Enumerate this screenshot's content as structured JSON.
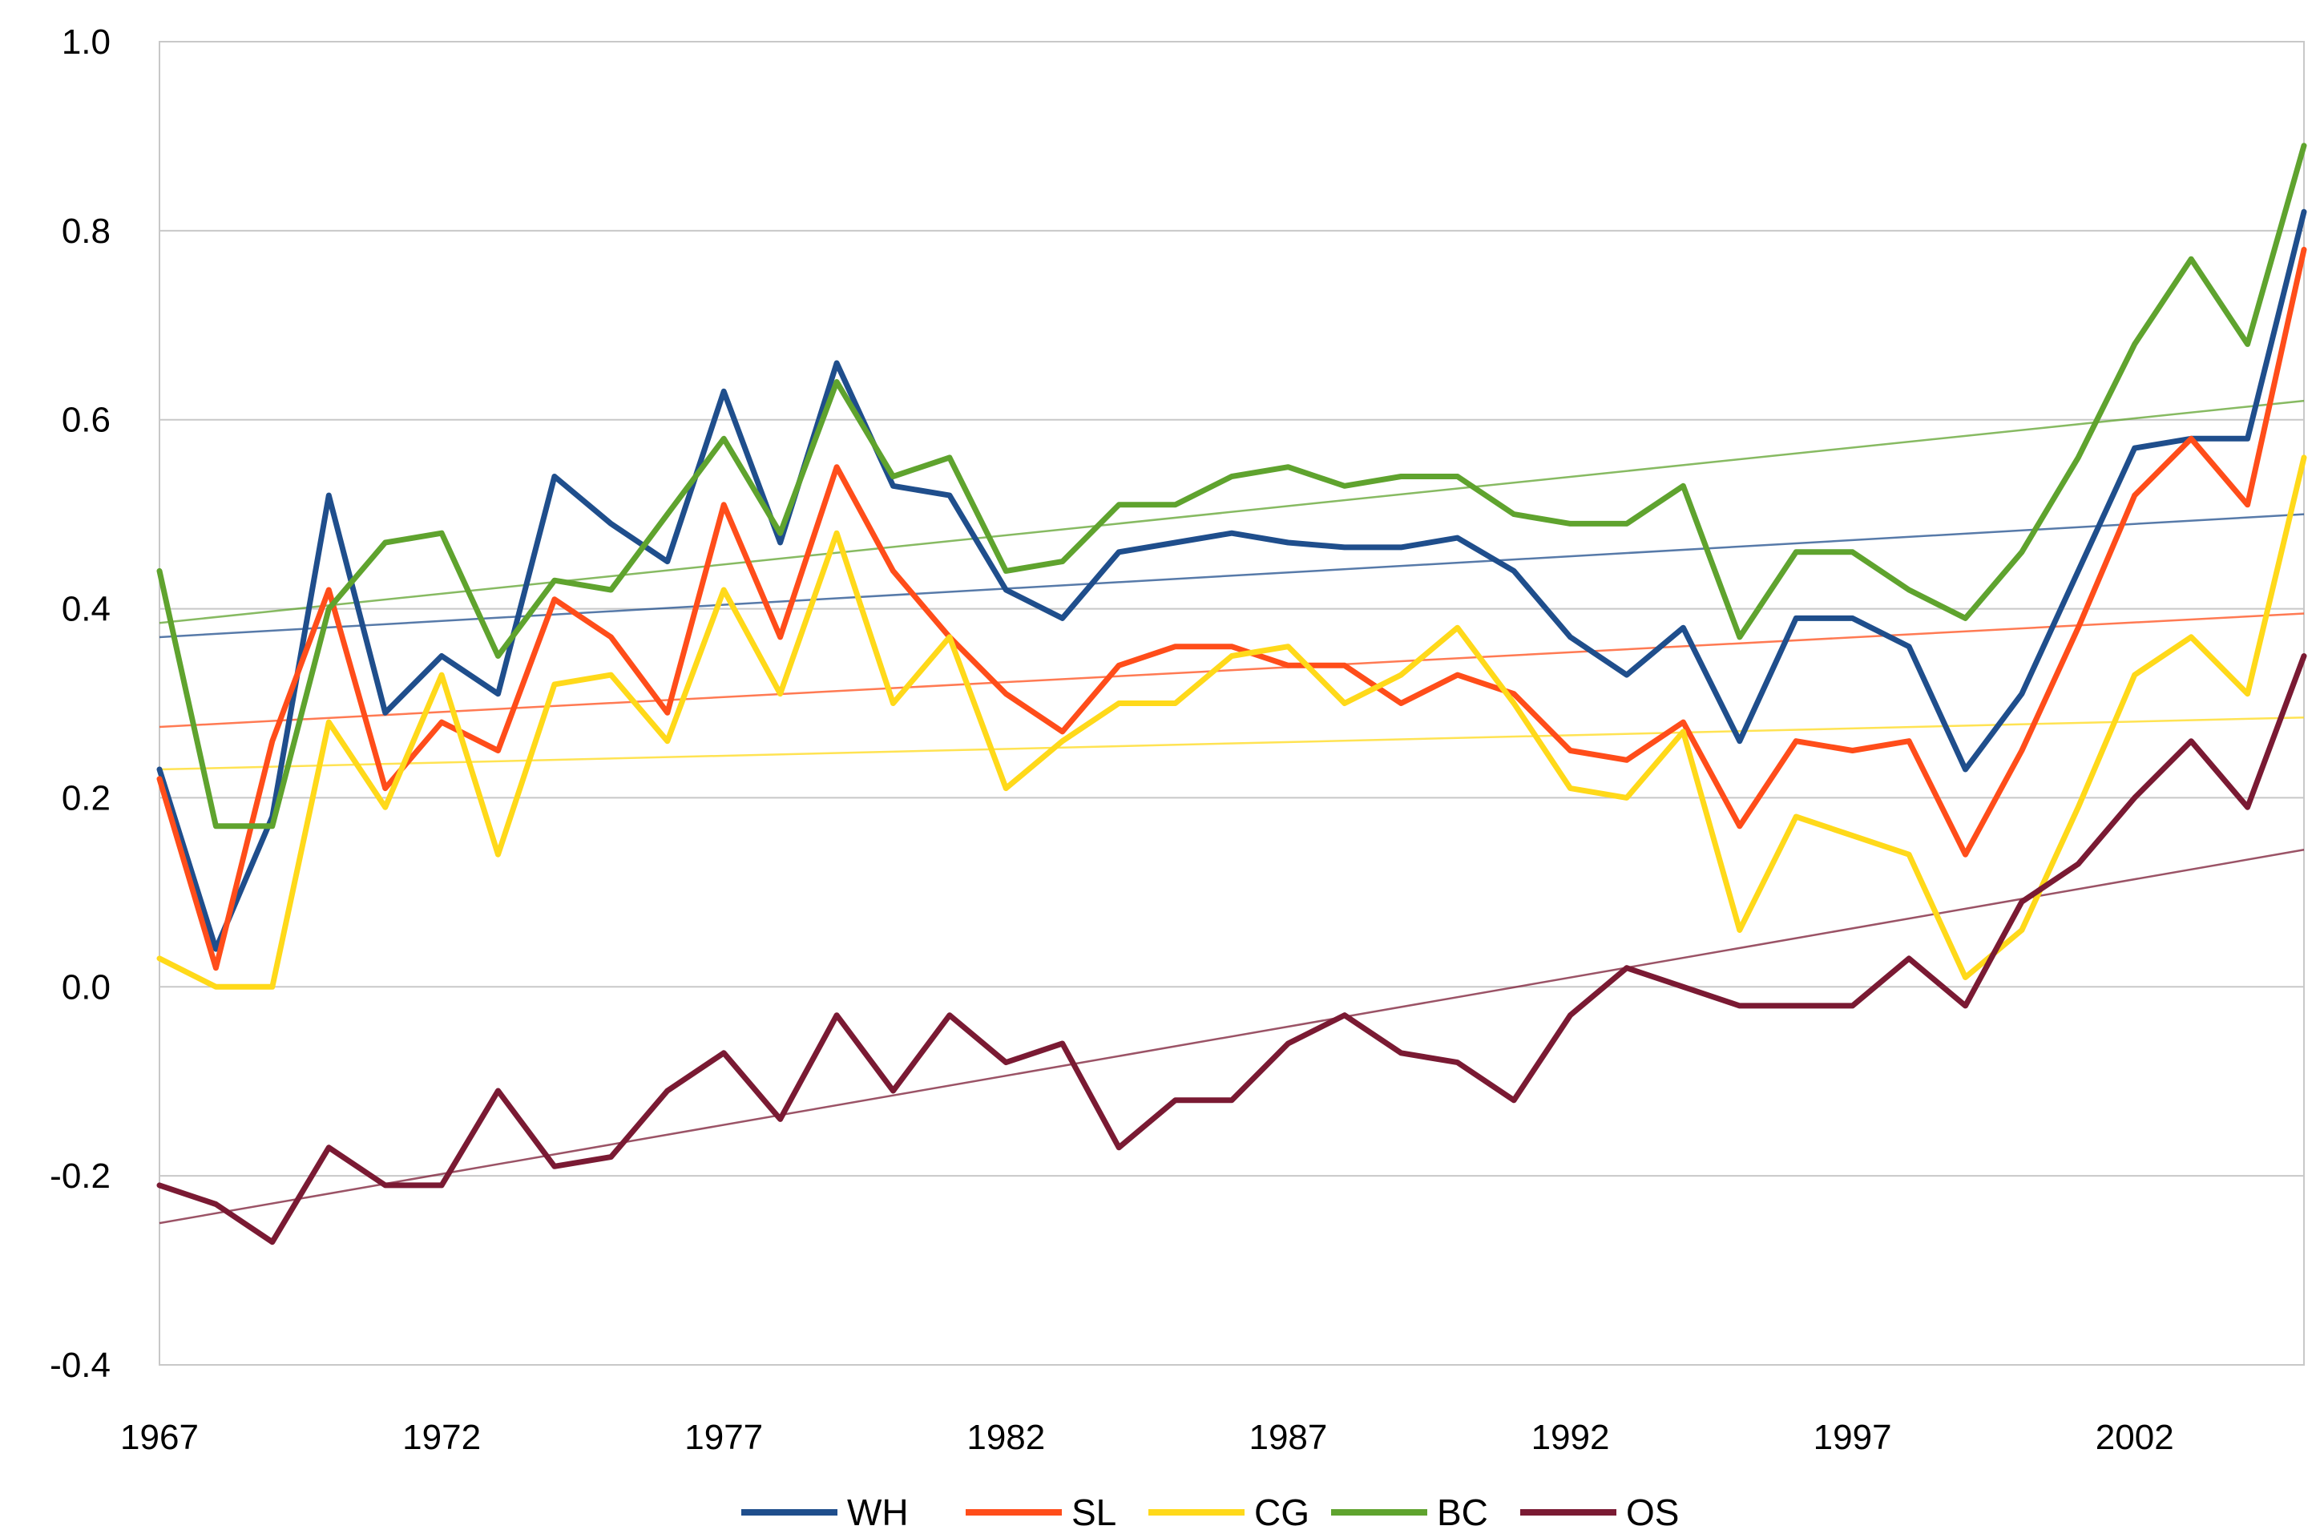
{
  "chart_data": {
    "type": "line",
    "title": "",
    "xlabel": "",
    "ylabel": "",
    "xlim": [
      1967,
      2005
    ],
    "ylim": [
      -0.4,
      1.0
    ],
    "grid": true,
    "legend": "bottom",
    "x": [
      1967,
      1968,
      1969,
      1970,
      1971,
      1972,
      1973,
      1974,
      1975,
      1976,
      1977,
      1978,
      1979,
      1980,
      1981,
      1982,
      1983,
      1984,
      1985,
      1986,
      1987,
      1988,
      1989,
      1990,
      1991,
      1992,
      1993,
      1994,
      1995,
      1996,
      1997,
      1998,
      1999,
      2000,
      2001,
      2002,
      2003,
      2004,
      2005
    ],
    "x_ticks": [
      1967,
      1972,
      1977,
      1982,
      1987,
      1992,
      1997,
      2002
    ],
    "x_tick_labels": [
      "1967",
      "1972",
      "1977",
      "1982",
      "1987",
      "1992",
      "1997",
      "2002"
    ],
    "y_ticks": [
      -0.4,
      -0.2,
      0.0,
      0.2,
      0.4,
      0.6,
      0.8,
      1.0
    ],
    "y_tick_labels": [
      "-0.4",
      "-0.2",
      "0.0",
      "0.2",
      "0.4",
      "0.6",
      "0.8",
      "1.0"
    ],
    "series": [
      {
        "name": "WH",
        "color": "#1F4E8C",
        "values": [
          0.23,
          0.04,
          0.18,
          0.52,
          0.29,
          0.35,
          0.31,
          0.54,
          0.49,
          0.45,
          0.63,
          0.47,
          0.66,
          0.53,
          0.52,
          0.42,
          0.39,
          0.46,
          0.47,
          0.48,
          0.47,
          0.465,
          0.465,
          0.475,
          0.44,
          0.37,
          0.33,
          0.38,
          0.26,
          0.39,
          0.39,
          0.36,
          0.23,
          0.31,
          0.44,
          0.57,
          0.58,
          0.58,
          0.82
        ],
        "trend": [
          0.37,
          0.5
        ]
      },
      {
        "name": "SL",
        "color": "#FF4D1A",
        "values": [
          0.22,
          0.02,
          0.26,
          0.42,
          0.21,
          0.28,
          0.25,
          0.41,
          0.37,
          0.29,
          0.51,
          0.37,
          0.55,
          0.44,
          0.37,
          0.31,
          0.27,
          0.34,
          0.36,
          0.36,
          0.34,
          0.34,
          0.3,
          0.33,
          0.31,
          0.25,
          0.24,
          0.28,
          0.17,
          0.26,
          0.25,
          0.26,
          0.14,
          0.25,
          0.38,
          0.52,
          0.58,
          0.51,
          0.78
        ],
        "trend": [
          0.275,
          0.395
        ]
      },
      {
        "name": "CG",
        "color": "#FFD91A",
        "values": [
          0.03,
          0.0,
          0.0,
          0.28,
          0.19,
          0.33,
          0.14,
          0.32,
          0.33,
          0.26,
          0.42,
          0.31,
          0.48,
          0.3,
          0.37,
          0.21,
          0.26,
          0.3,
          0.3,
          0.35,
          0.36,
          0.3,
          0.33,
          0.38,
          0.3,
          0.21,
          0.2,
          0.27,
          0.06,
          0.18,
          0.16,
          0.14,
          0.01,
          0.06,
          0.19,
          0.33,
          0.37,
          0.31,
          0.56
        ],
        "trend": [
          0.23,
          0.285
        ]
      },
      {
        "name": "BC",
        "color": "#5FA32E",
        "values": [
          0.44,
          0.17,
          0.17,
          0.4,
          0.47,
          0.48,
          0.35,
          0.43,
          0.42,
          0.5,
          0.58,
          0.48,
          0.64,
          0.54,
          0.56,
          0.44,
          0.45,
          0.51,
          0.51,
          0.54,
          0.55,
          0.53,
          0.54,
          0.54,
          0.5,
          0.49,
          0.49,
          0.53,
          0.37,
          0.46,
          0.46,
          0.42,
          0.39,
          0.46,
          0.56,
          0.68,
          0.77,
          0.68,
          0.89
        ],
        "trend": [
          0.385,
          0.62
        ]
      },
      {
        "name": "OS",
        "color": "#7A1A33",
        "values": [
          -0.21,
          -0.23,
          -0.27,
          -0.17,
          -0.21,
          -0.21,
          -0.11,
          -0.19,
          -0.18,
          -0.11,
          -0.07,
          -0.14,
          -0.03,
          -0.11,
          -0.03,
          -0.08,
          -0.06,
          -0.17,
          -0.12,
          -0.12,
          -0.06,
          -0.03,
          -0.07,
          -0.08,
          -0.12,
          -0.03,
          0.02,
          -0.0,
          -0.02,
          -0.02,
          -0.02,
          0.03,
          -0.02,
          0.09,
          0.13,
          0.2,
          0.26,
          0.19,
          0.35
        ],
        "trend": [
          -0.25,
          0.145
        ]
      }
    ]
  }
}
